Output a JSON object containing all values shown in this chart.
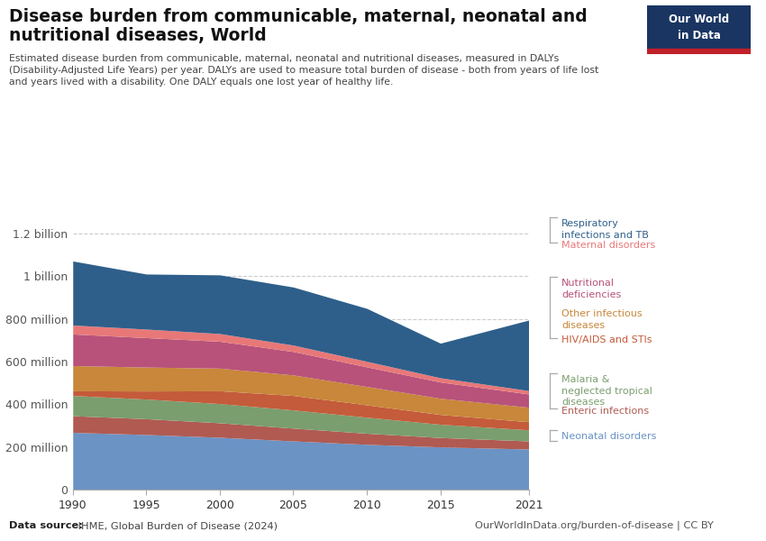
{
  "title_line1": "Disease burden from communicable, maternal, neonatal and",
  "title_line2": "nutritional diseases, World",
  "subtitle": "Estimated disease burden from communicable, maternal, neonatal and nutritional diseases, measured in DALYs\n(Disability-Adjusted Life Years) per year. DALYs are used to measure total burden of disease - both from years of life lost\nand years lived with a disability. One DALY equals one lost year of healthy life.",
  "datasource_bold": "Data source:",
  "datasource_rest": " IHME, Global Burden of Disease (2024)",
  "url": "OurWorldInData.org/burden-of-disease | CC BY",
  "years": [
    1990,
    1995,
    2000,
    2005,
    2010,
    2015,
    2021
  ],
  "series": [
    {
      "name": "Neonatal disorders",
      "color": "#6b93c4",
      "values": [
        268,
        258,
        245,
        228,
        212,
        200,
        190
      ]
    },
    {
      "name": "Enteric infections",
      "color": "#b05a52",
      "values": [
        78,
        74,
        68,
        60,
        52,
        44,
        38
      ]
    },
    {
      "name": "Malaria &\nneglected tropical\ndiseases",
      "color": "#7a9e6e",
      "values": [
        95,
        92,
        90,
        85,
        75,
        62,
        52
      ]
    },
    {
      "name": "HIV/AIDS and STIs",
      "color": "#c45b3a",
      "values": [
        22,
        38,
        60,
        68,
        58,
        46,
        38
      ]
    },
    {
      "name": "Other infectious\ndiseases",
      "color": "#c8873a",
      "values": [
        118,
        112,
        106,
        96,
        86,
        76,
        68
      ]
    },
    {
      "name": "Nutritional\ndeficiencies",
      "color": "#b8527a",
      "values": [
        148,
        138,
        126,
        110,
        92,
        76,
        62
      ]
    },
    {
      "name": "Maternal disorders",
      "color": "#e87878",
      "values": [
        42,
        40,
        36,
        30,
        26,
        20,
        16
      ]
    },
    {
      "name": "Respiratory\ninfections and TB",
      "color": "#2e5f8a",
      "values": [
        300,
        258,
        275,
        272,
        248,
        162,
        330
      ]
    }
  ],
  "ylim": [
    0,
    1300000000
  ],
  "yticks": [
    0,
    200000000,
    400000000,
    600000000,
    800000000,
    1000000000,
    1200000000
  ],
  "ytick_labels": [
    "0",
    "200 million",
    "400 million",
    "600 million",
    "800 million",
    "1 billion",
    "1.2 billion"
  ],
  "background_color": "#ffffff",
  "grid_color": "#cccccc",
  "logo_bg": "#1a3562",
  "logo_red": "#c0202a",
  "logo_text": "Our World\nin Data"
}
